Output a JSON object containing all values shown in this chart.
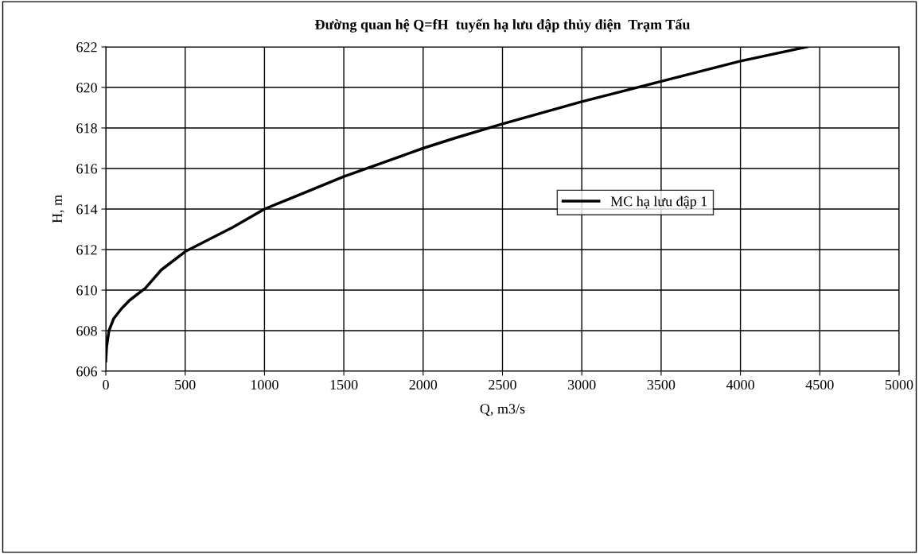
{
  "chart_data": {
    "type": "line",
    "title": "Đường quan hệ Q=fH  tuyến hạ lưu đập thủy điện  Trạm Tấu",
    "xlabel": "Q, m3/s",
    "ylabel": "H, m",
    "x": [
      0,
      5,
      20,
      50,
      100,
      150,
      250,
      350,
      500,
      650,
      800,
      1000,
      1250,
      1500,
      1750,
      2000,
      2200,
      2500,
      3000,
      3500,
      4000,
      4420
    ],
    "series": [
      {
        "name": "MC hạ lưu đập 1",
        "color": "#000000",
        "values": [
          606.5,
          607.2,
          608,
          608.6,
          609.1,
          609.5,
          610.1,
          611,
          611.9,
          612.5,
          613.1,
          614,
          614.8,
          615.6,
          616.3,
          617,
          617.5,
          618.2,
          619.3,
          620.3,
          621.3,
          622
        ]
      }
    ],
    "xlim": [
      0,
      5000
    ],
    "xticks": [
      0,
      500,
      1000,
      1500,
      2000,
      2500,
      3000,
      3500,
      4000,
      4500,
      5000
    ],
    "ylim": [
      606,
      622
    ],
    "yticks": [
      606,
      608,
      610,
      612,
      614,
      616,
      618,
      620,
      622
    ],
    "grid": true,
    "legend": "right",
    "marker": "none",
    "line_style": "solid"
  }
}
